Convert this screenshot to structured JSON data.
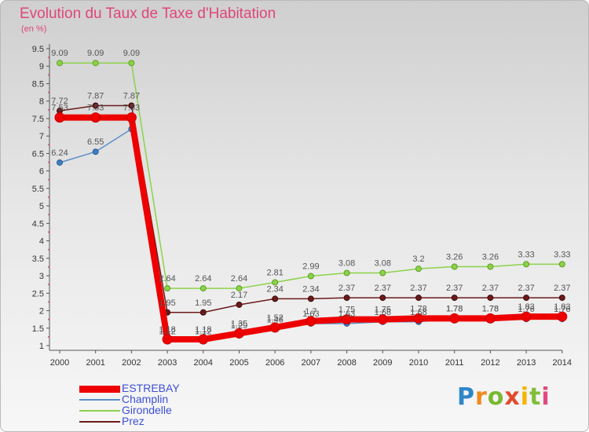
{
  "chart_data": {
    "type": "line",
    "title": "Evolution du Taux de Taxe d'Habitation",
    "unit_label": "(en %)",
    "x": [
      "2000",
      "2001",
      "2002",
      "2003",
      "2004",
      "2005",
      "2006",
      "2007",
      "2008",
      "2009",
      "2010",
      "2011",
      "2012",
      "2013",
      "2014"
    ],
    "y_ticks": [
      "1",
      "1.5",
      "2",
      "2.5",
      "3",
      "3.5",
      "4",
      "4.5",
      "5",
      "5.5",
      "6",
      "6.5",
      "7",
      "7.5",
      "8",
      "8.5",
      "9",
      "9.5"
    ],
    "ylim": [
      1,
      9.5
    ],
    "grid": false,
    "legend_position": "bottom-left",
    "series": [
      {
        "name": "ESTREBAY",
        "color": "#ee0000",
        "values": [
          7.53,
          7.53,
          7.53,
          1.18,
          1.18,
          1.35,
          1.52,
          1.7,
          1.75,
          1.75,
          1.78,
          1.78,
          1.78,
          1.83,
          1.83
        ]
      },
      {
        "name": "Champlin",
        "color": "#5b8fc7",
        "values": [
          6.24,
          6.55,
          7.2,
          1.12,
          1.12,
          1.29,
          1.46,
          1.63,
          1.63,
          1.68,
          1.68,
          1.78,
          1.78,
          1.76,
          1.76
        ]
      },
      {
        "name": "Girondelle",
        "color": "#8cd24a",
        "values": [
          9.09,
          9.09,
          9.09,
          2.64,
          2.64,
          2.64,
          2.81,
          2.99,
          3.08,
          3.08,
          3.2,
          3.26,
          3.26,
          3.33,
          3.33
        ]
      },
      {
        "name": "Prez",
        "color": "#6b1a1a",
        "values": [
          7.72,
          7.87,
          7.87,
          1.95,
          1.95,
          2.17,
          2.34,
          2.34,
          2.37,
          2.37,
          2.37,
          2.37,
          2.37,
          2.37,
          2.37
        ]
      }
    ],
    "data_labels": [
      [
        "7.53",
        "7.53",
        "7.53",
        "1.18",
        "1.18",
        "1.35",
        "1.52",
        "1.7",
        "1.75",
        "1.75",
        "1.78",
        "1.78",
        "1.78",
        "1.83",
        "1.83"
      ],
      [
        "6.24",
        "6.55",
        "",
        "1.12",
        "1.12",
        "1.29",
        "1.46",
        "1.63",
        "1.63",
        "1.68",
        "1.68",
        "1.78",
        "1.78",
        "1.76",
        "1.76"
      ],
      [
        "9.09",
        "9.09",
        "9.09",
        "2.64",
        "2.64",
        "2.64",
        "2.81",
        "2.99",
        "3.08",
        "3.08",
        "3.2",
        "3.26",
        "3.26",
        "3.33",
        "3.33"
      ],
      [
        "7.72",
        "7.87",
        "7.87",
        "1.95",
        "1.95",
        "2.17",
        "2.34",
        "2.34",
        "2.37",
        "2.37",
        "2.37",
        "2.37",
        "2.37",
        "2.37",
        "2.37"
      ]
    ]
  },
  "brand": {
    "letters": [
      "P",
      "r",
      "o",
      "x",
      "i",
      "t",
      "i"
    ],
    "colors": [
      "#2f86c9",
      "#f08a1c",
      "#79b930",
      "#e24a2c",
      "#f5b400",
      "#7fbf3a",
      "#e24a7b"
    ]
  }
}
